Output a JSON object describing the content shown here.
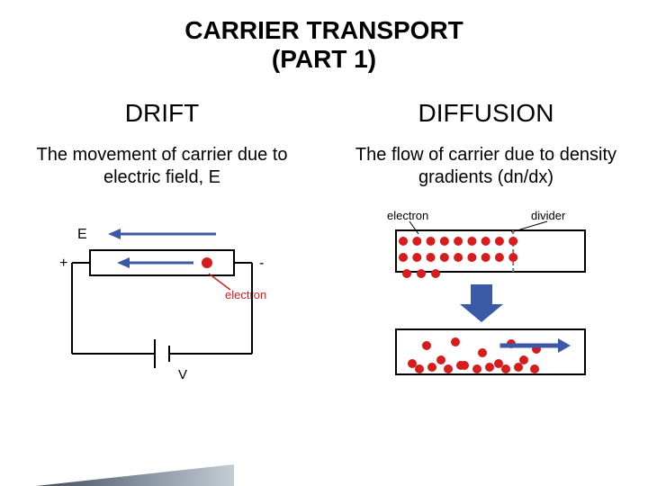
{
  "title_line1": "CARRIER TRANSPORT",
  "title_line2": "(PART 1)",
  "left": {
    "heading": "DRIFT",
    "desc": "The movement of carrier due to electric field, E",
    "diagram": {
      "label_E": "E",
      "label_electron": "electron",
      "label_V": "V",
      "plus": "+",
      "minus": "-",
      "colors": {
        "wire": "#000000",
        "electron": "#d81b1b",
        "arrow": "#3a5aa8",
        "text": "#000000"
      }
    }
  },
  "right": {
    "heading": "DIFFUSION",
    "desc": "The flow of carrier due to density gradients (dn/dx)",
    "diagram": {
      "label_electron": "electron",
      "label_divider": "divider",
      "colors": {
        "box_stroke": "#000000",
        "electron": "#d81b1b",
        "divider": "#7a7a7a",
        "arrow_down": "#3a5aa8",
        "arrow_right": "#3a5aa8",
        "leader": "#000000",
        "text": "#000000"
      },
      "top_box": {
        "rows": 2,
        "cols": 9,
        "extra_row_count": 3
      },
      "bottom_box": {
        "scatter": [
          [
            12,
            34
          ],
          [
            28,
            14
          ],
          [
            44,
            30
          ],
          [
            60,
            10
          ],
          [
            70,
            36
          ],
          [
            90,
            22
          ],
          [
            108,
            34
          ],
          [
            122,
            12
          ],
          [
            136,
            30
          ],
          [
            150,
            18
          ],
          [
            20,
            40
          ],
          [
            52,
            40
          ],
          [
            84,
            40
          ],
          [
            116,
            40
          ],
          [
            148,
            40
          ],
          [
            34,
            38
          ],
          [
            66,
            36
          ],
          [
            98,
            38
          ],
          [
            130,
            38
          ]
        ]
      }
    }
  }
}
